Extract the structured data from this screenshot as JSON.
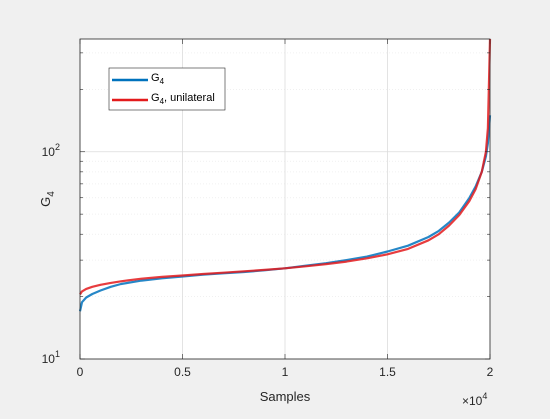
{
  "chart_data": {
    "type": "line",
    "xlabel": "Samples",
    "ylabel": "G",
    "ylabel_sub": "4",
    "x_multiplier": "×10",
    "x_multiplier_exp": "4",
    "xlim": [
      0,
      20000
    ],
    "ylim": [
      10,
      350
    ],
    "yscale": "log",
    "grid": true,
    "legend_position": "top-left",
    "xticks": [
      {
        "value": 0,
        "label": "0"
      },
      {
        "value": 5000,
        "label": "0.5"
      },
      {
        "value": 10000,
        "label": "1"
      },
      {
        "value": 15000,
        "label": "1.5"
      },
      {
        "value": 20000,
        "label": "2"
      }
    ],
    "yticks": [
      {
        "value": 10,
        "base": "10",
        "exp": "1"
      },
      {
        "value": 100,
        "base": "10",
        "exp": "2"
      }
    ],
    "series": [
      {
        "name": "G",
        "name_sub": "4",
        "name_suffix": "",
        "color": "#0072bd",
        "x": [
          0,
          100,
          300,
          600,
          1000,
          1500,
          2000,
          3000,
          4000,
          5000,
          6000,
          7000,
          8000,
          9000,
          10000,
          11000,
          12000,
          13000,
          14000,
          15000,
          16000,
          17000,
          17500,
          18000,
          18500,
          19000,
          19300,
          19600,
          19800,
          19900,
          20000
        ],
        "y": [
          17,
          18.8,
          19.8,
          20.6,
          21.4,
          22.3,
          23,
          23.9,
          24.5,
          25,
          25.5,
          25.9,
          26.3,
          26.8,
          27.4,
          28.2,
          29,
          30,
          31.2,
          33,
          35.2,
          38.8,
          41.5,
          45.5,
          51,
          60,
          68,
          80,
          95,
          110,
          150
        ]
      },
      {
        "name": "G",
        "name_sub": "4",
        "name_suffix": ", unilateral",
        "color": "#e31a1c",
        "x": [
          0,
          100,
          300,
          600,
          1000,
          1500,
          2000,
          3000,
          4000,
          5000,
          6000,
          7000,
          8000,
          9000,
          10000,
          11000,
          12000,
          13000,
          14000,
          15000,
          16000,
          17000,
          17500,
          18000,
          18500,
          19000,
          19300,
          19600,
          19800,
          19900,
          20000
        ],
        "y": [
          20.5,
          21.2,
          21.8,
          22.3,
          22.8,
          23.3,
          23.7,
          24.4,
          24.9,
          25.3,
          25.7,
          26.1,
          26.5,
          26.9,
          27.4,
          28,
          28.7,
          29.5,
          30.6,
          32,
          34,
          37.4,
          40,
          44,
          49.5,
          58,
          66,
          80,
          100,
          130,
          350
        ]
      }
    ]
  }
}
